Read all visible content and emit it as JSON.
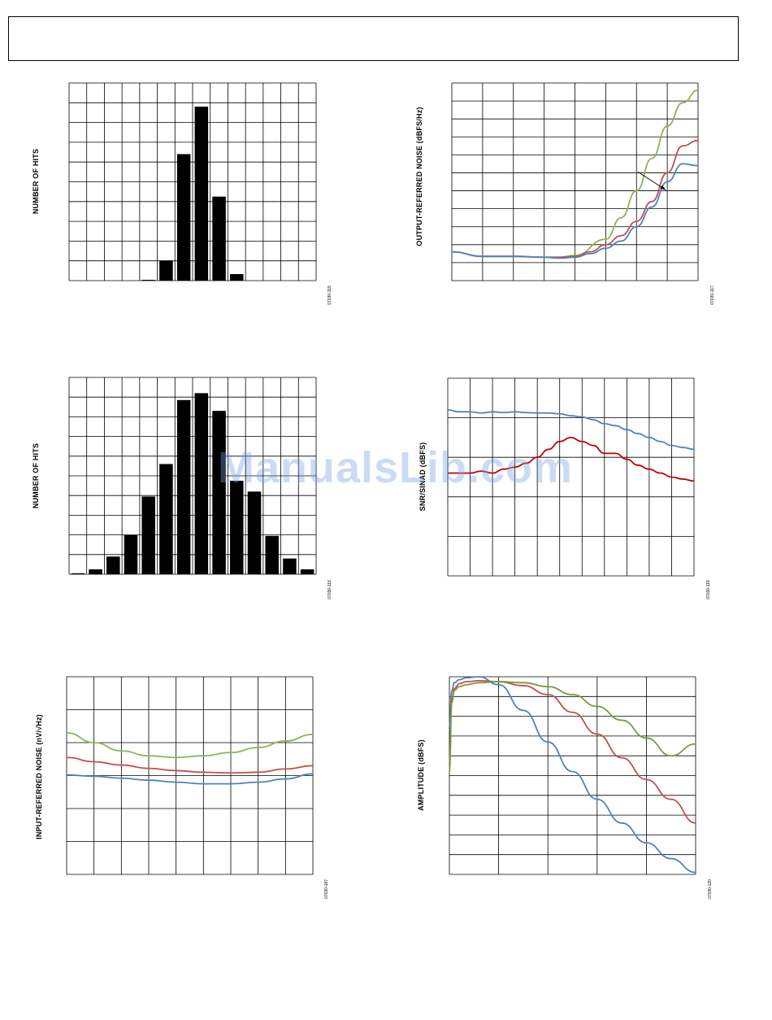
{
  "watermark": "ManualsLib.com",
  "chart_data": [
    {
      "id": "hist1",
      "type": "bar",
      "ylabel": "NUMBER OF HITS",
      "figure_id": "07030-115",
      "grid": true,
      "cols": 14,
      "rows": 10,
      "ylim": [
        0,
        10
      ],
      "bar_color": "#000000",
      "values": [
        0,
        0,
        0,
        0,
        0.04,
        1.02,
        6.4,
        8.8,
        4.25,
        0.33,
        0,
        0,
        0,
        0
      ]
    },
    {
      "id": "hist2",
      "type": "bar",
      "ylabel": "NUMBER OF HITS",
      "figure_id": "07030-116",
      "grid": true,
      "cols": 14,
      "rows": 10,
      "ylim": [
        0,
        10
      ],
      "bar_color": "#000000",
      "values": [
        0.05,
        0.25,
        0.9,
        2.0,
        3.95,
        5.6,
        8.85,
        9.2,
        8.3,
        4.75,
        4.2,
        1.95,
        0.8,
        0.25
      ]
    },
    {
      "id": "output_noise",
      "type": "line",
      "ylabel": "OUTPUT-REFERRED NOISE (dBFS/Hz)",
      "figure_id": "07030-117",
      "grid": true,
      "cols": 8,
      "rows": 11,
      "xlim": [
        0,
        8
      ],
      "ylim": [
        0,
        11
      ],
      "series": [
        {
          "color": "#8db359",
          "x": [
            0,
            1,
            2,
            3,
            3.5,
            4,
            5,
            5.5,
            6,
            6.5,
            7,
            7.5,
            8
          ],
          "y": [
            1.6,
            1.35,
            1.35,
            1.3,
            1.3,
            1.4,
            2.3,
            3.5,
            5.0,
            6.8,
            8.6,
            9.9,
            10.6
          ]
        },
        {
          "color": "#c0504d",
          "x": [
            0,
            1,
            2,
            3,
            3.5,
            4,
            4.5,
            5,
            5.5,
            6,
            6.5,
            7,
            7.5,
            8
          ],
          "y": [
            1.6,
            1.35,
            1.35,
            1.3,
            1.3,
            1.35,
            1.6,
            2.0,
            2.5,
            3.3,
            4.4,
            6.0,
            7.5,
            7.8
          ]
        },
        {
          "color": "#4f81bd",
          "x": [
            0,
            1,
            2,
            3,
            3.5,
            4,
            4.5,
            5,
            5.5,
            6,
            6.5,
            7,
            7.5,
            8
          ],
          "y": [
            1.6,
            1.35,
            1.35,
            1.3,
            1.25,
            1.3,
            1.5,
            1.8,
            2.2,
            3.0,
            4.1,
            5.5,
            6.5,
            6.4
          ]
        }
      ],
      "arrow": {
        "from": [
          6.05,
          6.05
        ],
        "to": [
          6.95,
          5.05
        ]
      }
    },
    {
      "id": "snr_sinad",
      "type": "line",
      "ylabel": "SNR/SINAD (dBFS)",
      "figure_id": "07030-118",
      "grid": true,
      "cols": 11,
      "rows": 5,
      "xlim": [
        0,
        11
      ],
      "ylim": [
        0,
        5
      ],
      "series": [
        {
          "color": "#4f81bd",
          "x": [
            0,
            0.5,
            1,
            1.5,
            2,
            2.5,
            3,
            3.5,
            4,
            4.5,
            5,
            5.5,
            6,
            6.5,
            7,
            7.5,
            8,
            8.5,
            9,
            9.5,
            10,
            10.5,
            11
          ],
          "y": [
            4.2,
            4.15,
            4.15,
            4.12,
            4.15,
            4.13,
            4.15,
            4.13,
            4.12,
            4.12,
            4.1,
            4.05,
            4.02,
            3.95,
            3.85,
            3.8,
            3.7,
            3.6,
            3.5,
            3.4,
            3.3,
            3.25,
            3.2
          ]
        },
        {
          "color": "#c00000",
          "x": [
            0,
            0.5,
            1,
            1.5,
            2,
            2.5,
            3,
            3.5,
            4,
            4.5,
            5,
            5.5,
            6,
            6.5,
            7,
            7.5,
            8,
            8.5,
            9,
            9.5,
            10,
            10.5,
            11
          ],
          "y": [
            2.6,
            2.6,
            2.6,
            2.65,
            2.6,
            2.7,
            2.75,
            2.85,
            3.0,
            3.2,
            3.4,
            3.5,
            3.4,
            3.3,
            3.1,
            3.1,
            2.95,
            2.8,
            2.7,
            2.6,
            2.5,
            2.45,
            2.4
          ]
        }
      ]
    },
    {
      "id": "input_noise",
      "type": "line",
      "ylabel": "INPUT-REFERRED NOISE (nV/√Hz)",
      "figure_id": "07030-187",
      "grid": true,
      "cols": 9,
      "rows": 6,
      "xlim": [
        0,
        9
      ],
      "ylim": [
        0,
        6
      ],
      "series": [
        {
          "color": "#8db359",
          "x": [
            0,
            1,
            2,
            3,
            4,
            5,
            6,
            7,
            8,
            9
          ],
          "y": [
            4.3,
            4.0,
            3.75,
            3.6,
            3.55,
            3.6,
            3.7,
            3.85,
            4.05,
            4.25
          ]
        },
        {
          "color": "#c0504d",
          "x": [
            0,
            1,
            2,
            3,
            4,
            5,
            6,
            7,
            8,
            9
          ],
          "y": [
            3.55,
            3.42,
            3.32,
            3.22,
            3.15,
            3.1,
            3.08,
            3.1,
            3.2,
            3.3
          ]
        },
        {
          "color": "#4f81bd",
          "x": [
            0,
            1,
            2,
            3,
            4,
            5,
            6,
            7,
            8,
            9
          ],
          "y": [
            3.02,
            2.98,
            2.92,
            2.86,
            2.8,
            2.75,
            2.75,
            2.8,
            2.9,
            3.05
          ]
        }
      ]
    },
    {
      "id": "amplitude",
      "type": "line",
      "ylabel": "AMPLITUDE (dBFS)",
      "figure_id": "07030-120",
      "grid": true,
      "cols": 5,
      "rows": 10,
      "xlim": [
        0,
        5
      ],
      "ylim": [
        0,
        10
      ],
      "series": [
        {
          "color": "#4f81bd",
          "x": [
            0,
            0.05,
            0.1,
            0.2,
            0.35,
            0.6,
            1,
            1.5,
            2,
            2.5,
            3,
            3.5,
            4,
            4.5,
            5
          ],
          "y": [
            7.5,
            9.3,
            9.7,
            9.85,
            9.95,
            10,
            9.6,
            8.3,
            6.7,
            5.2,
            3.8,
            2.6,
            1.6,
            0.8,
            0.1
          ]
        },
        {
          "color": "#c0504d",
          "x": [
            0,
            0.05,
            0.1,
            0.2,
            0.35,
            0.6,
            1,
            1.5,
            2,
            2.5,
            3,
            3.5,
            4,
            4.5,
            5
          ],
          "y": [
            5.6,
            8.9,
            9.4,
            9.65,
            9.75,
            9.8,
            9.75,
            9.55,
            9.1,
            8.2,
            7.1,
            5.9,
            4.8,
            3.8,
            2.6
          ]
        },
        {
          "color": "#779a3e",
          "x": [
            0,
            0.05,
            0.1,
            0.2,
            0.35,
            0.6,
            1,
            1.5,
            2,
            2.5,
            3,
            3.5,
            4,
            4.5,
            5
          ],
          "y": [
            5.2,
            8.7,
            9.3,
            9.5,
            9.6,
            9.7,
            9.75,
            9.7,
            9.5,
            9.1,
            8.5,
            7.8,
            6.9,
            6.0,
            6.6
          ]
        }
      ]
    }
  ]
}
